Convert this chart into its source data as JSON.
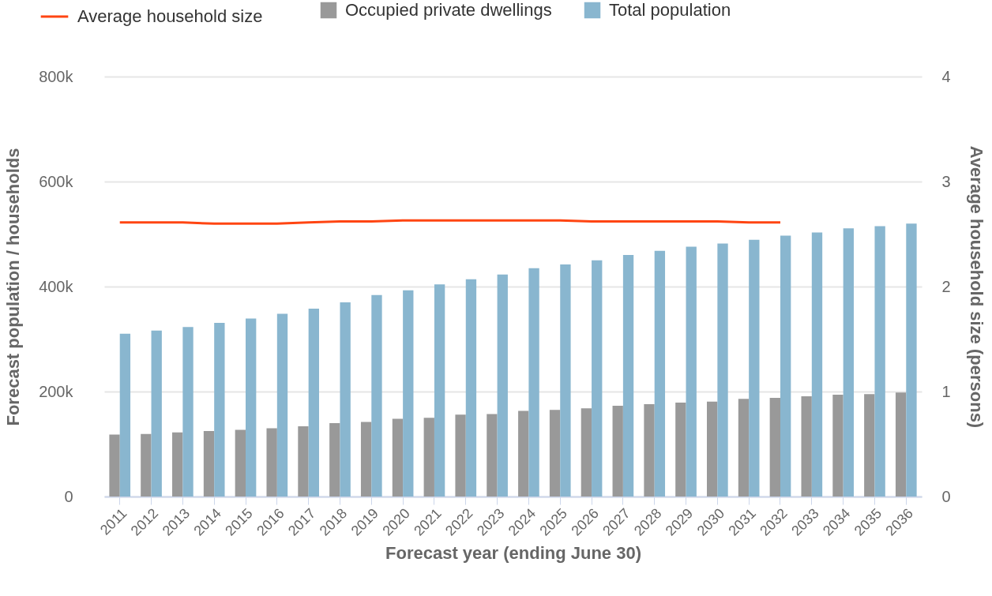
{
  "chart_data": {
    "type": "bar",
    "xlabel": "Forecast year (ending June 30)",
    "ylabel": "Forecast population / households",
    "y2label": "Average household size (persons)",
    "categories": [
      "2011",
      "2012",
      "2013",
      "2014",
      "2015",
      "2016",
      "2017",
      "2018",
      "2019",
      "2020",
      "2021",
      "2022",
      "2023",
      "2024",
      "2025",
      "2026",
      "2027",
      "2028",
      "2029",
      "2030",
      "2031",
      "2032",
      "2033",
      "2034",
      "2035",
      "2036"
    ],
    "series": [
      {
        "name": "Average household size",
        "type": "line",
        "axis": "y2",
        "color": "#ff4512",
        "values": [
          2.61,
          2.61,
          2.61,
          2.6,
          2.6,
          2.6,
          2.61,
          2.62,
          2.62,
          2.63,
          2.63,
          2.63,
          2.63,
          2.63,
          2.63,
          2.62,
          2.62,
          2.62,
          2.62,
          2.62,
          2.61,
          2.61,
          null,
          null,
          null,
          null
        ]
      },
      {
        "name": "Occupied private dwellings",
        "color": "#999999",
        "values": [
          118000,
          119000,
          122000,
          125000,
          127000,
          130000,
          134000,
          140000,
          142000,
          148000,
          150000,
          156000,
          157000,
          163000,
          165000,
          168000,
          173000,
          176000,
          179000,
          181000,
          186000,
          188000,
          191000,
          194000,
          195000,
          198000
        ]
      },
      {
        "name": "Total population",
        "color": "#89b6cf",
        "values": [
          310000,
          316000,
          323000,
          331000,
          339000,
          348000,
          358000,
          370000,
          384000,
          393000,
          404000,
          414000,
          423000,
          435000,
          442000,
          450000,
          460000,
          468000,
          476000,
          482000,
          489000,
          497000,
          503000,
          511000,
          515000,
          520000
        ]
      }
    ],
    "ylim": [
      0,
      800000
    ],
    "yticks": [
      0,
      {
        "value": 200000,
        "label": "200k"
      },
      {
        "value": 400000,
        "label": "400k"
      },
      {
        "value": 600000,
        "label": "600k"
      },
      {
        "value": 800000,
        "label": "800k"
      }
    ],
    "y2lim": [
      0,
      4
    ],
    "y2ticks": [
      0,
      1,
      2,
      3,
      4
    ],
    "grid": "y",
    "legend": "top left"
  }
}
